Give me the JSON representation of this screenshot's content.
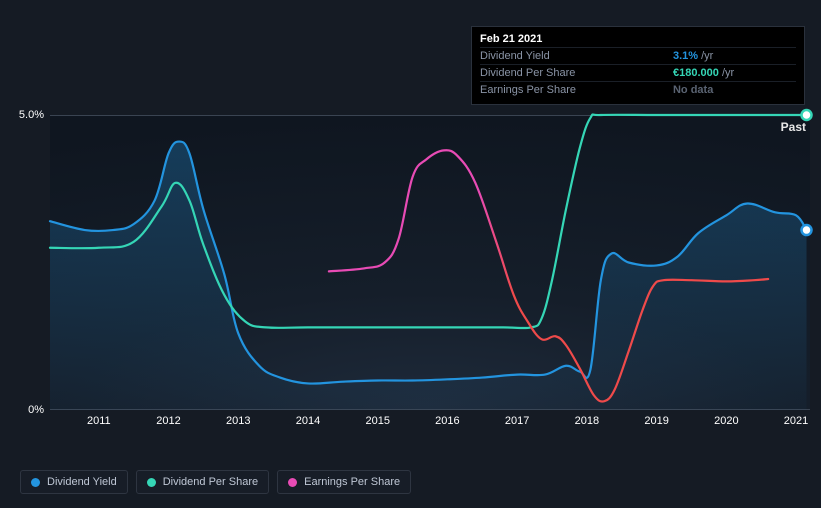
{
  "chart": {
    "type": "line",
    "background_color": "#151b24",
    "plot_bg_gradient": [
      "#1e2a3a",
      "#0f1620"
    ],
    "grid_color": "#3a4452",
    "ylim": [
      0,
      5
    ],
    "y_ticks": [
      {
        "v": 0,
        "label": "0%"
      },
      {
        "v": 5,
        "label": "5.0%"
      }
    ],
    "x_range": [
      2010.3,
      2021.2
    ],
    "x_ticks": [
      2011,
      2012,
      2013,
      2014,
      2015,
      2016,
      2017,
      2018,
      2019,
      2020,
      2021
    ],
    "past_label": "Past",
    "label_fontsize": 11,
    "line_width": 2.2,
    "series": {
      "dividend_yield": {
        "label": "Dividend Yield",
        "color": "#2394df",
        "fill_opacity": 0.22,
        "fill": true,
        "end_marker": true,
        "points": [
          [
            2010.3,
            3.2
          ],
          [
            2010.8,
            3.05
          ],
          [
            2011.2,
            3.05
          ],
          [
            2011.5,
            3.15
          ],
          [
            2011.8,
            3.55
          ],
          [
            2012.0,
            4.35
          ],
          [
            2012.15,
            4.55
          ],
          [
            2012.3,
            4.35
          ],
          [
            2012.5,
            3.4
          ],
          [
            2012.8,
            2.3
          ],
          [
            2013.0,
            1.3
          ],
          [
            2013.3,
            0.75
          ],
          [
            2013.6,
            0.55
          ],
          [
            2014.0,
            0.45
          ],
          [
            2014.5,
            0.48
          ],
          [
            2015.0,
            0.5
          ],
          [
            2015.5,
            0.5
          ],
          [
            2016.0,
            0.52
          ],
          [
            2016.5,
            0.55
          ],
          [
            2017.0,
            0.6
          ],
          [
            2017.4,
            0.6
          ],
          [
            2017.7,
            0.75
          ],
          [
            2017.9,
            0.65
          ],
          [
            2018.05,
            0.68
          ],
          [
            2018.2,
            2.2
          ],
          [
            2018.35,
            2.65
          ],
          [
            2018.6,
            2.5
          ],
          [
            2019.0,
            2.45
          ],
          [
            2019.3,
            2.6
          ],
          [
            2019.6,
            3.0
          ],
          [
            2020.0,
            3.3
          ],
          [
            2020.3,
            3.5
          ],
          [
            2020.7,
            3.35
          ],
          [
            2021.0,
            3.3
          ],
          [
            2021.15,
            3.05
          ]
        ]
      },
      "dividend_per_share": {
        "label": "Dividend Per Share",
        "color": "#35d6b6",
        "fill": false,
        "end_marker": true,
        "points": [
          [
            2010.3,
            2.75
          ],
          [
            2011.0,
            2.75
          ],
          [
            2011.5,
            2.85
          ],
          [
            2011.9,
            3.45
          ],
          [
            2012.1,
            3.85
          ],
          [
            2012.3,
            3.55
          ],
          [
            2012.5,
            2.8
          ],
          [
            2012.8,
            1.95
          ],
          [
            2013.1,
            1.5
          ],
          [
            2013.4,
            1.4
          ],
          [
            2014.0,
            1.4
          ],
          [
            2015.0,
            1.4
          ],
          [
            2016.0,
            1.4
          ],
          [
            2016.8,
            1.4
          ],
          [
            2017.2,
            1.4
          ],
          [
            2017.35,
            1.55
          ],
          [
            2017.5,
            2.2
          ],
          [
            2017.7,
            3.4
          ],
          [
            2017.9,
            4.45
          ],
          [
            2018.05,
            4.95
          ],
          [
            2018.2,
            5.0
          ],
          [
            2019.0,
            5.0
          ],
          [
            2020.0,
            5.0
          ],
          [
            2021.15,
            5.0
          ]
        ]
      },
      "earnings_per_share": {
        "label": "Earnings Per Share",
        "color_left": "#e84bb5",
        "color_right": "#ef4a4a",
        "color_split_x": 2016.7,
        "fill": false,
        "points": [
          [
            2014.3,
            2.35
          ],
          [
            2014.8,
            2.4
          ],
          [
            2015.1,
            2.5
          ],
          [
            2015.3,
            2.9
          ],
          [
            2015.5,
            3.95
          ],
          [
            2015.7,
            4.25
          ],
          [
            2015.95,
            4.4
          ],
          [
            2016.15,
            4.3
          ],
          [
            2016.4,
            3.85
          ],
          [
            2016.7,
            2.85
          ],
          [
            2016.95,
            1.95
          ],
          [
            2017.15,
            1.5
          ],
          [
            2017.35,
            1.2
          ],
          [
            2017.55,
            1.25
          ],
          [
            2017.7,
            1.1
          ],
          [
            2017.9,
            0.7
          ],
          [
            2018.1,
            0.25
          ],
          [
            2018.25,
            0.15
          ],
          [
            2018.4,
            0.35
          ],
          [
            2018.6,
            1.0
          ],
          [
            2018.8,
            1.7
          ],
          [
            2018.95,
            2.1
          ],
          [
            2019.1,
            2.2
          ],
          [
            2019.5,
            2.2
          ],
          [
            2020.0,
            2.18
          ],
          [
            2020.4,
            2.2
          ],
          [
            2020.6,
            2.22
          ]
        ]
      }
    }
  },
  "tooltip": {
    "title": "Feb 21 2021",
    "rows": [
      {
        "label": "Dividend Yield",
        "value": "3.1%",
        "unit": "/yr",
        "value_color": "#2394df"
      },
      {
        "label": "Dividend Per Share",
        "value": "€180.000",
        "unit": "/yr",
        "value_color": "#35d6b6"
      },
      {
        "label": "Earnings Per Share",
        "value": "No data",
        "unit": "",
        "value_color": "#5a6372"
      }
    ]
  },
  "legend": {
    "items": [
      {
        "key": "dividend_yield",
        "label": "Dividend Yield",
        "color": "#2394df"
      },
      {
        "key": "dividend_per_share",
        "label": "Dividend Per Share",
        "color": "#35d6b6"
      },
      {
        "key": "earnings_per_share",
        "label": "Earnings Per Share",
        "color": "#e84bb5"
      }
    ]
  }
}
